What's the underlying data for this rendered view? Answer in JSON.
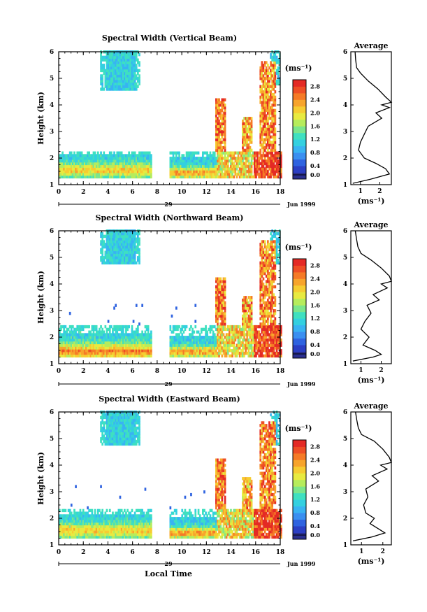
{
  "chart_data": [
    {
      "type": "heatmap",
      "title": "Spectral Width (Vertical Beam)",
      "xlabel": "",
      "ylabel": "Height (km)",
      "xlim": [
        0,
        18
      ],
      "ylim": [
        1,
        6
      ],
      "xticks": [
        "0",
        "2",
        "4",
        "6",
        "8",
        "10",
        "12",
        "14",
        "16",
        "18"
      ],
      "yticks": [
        "1",
        "2",
        "3",
        "4",
        "5",
        "6"
      ],
      "date_day": "29",
      "date_month": "Jun 1999",
      "colorbar": {
        "unit": "(ms⁻¹)",
        "labels": [
          "0.0",
          "0.4",
          "0.8",
          "1.2",
          "1.6",
          "2.0",
          "2.4",
          "2.8"
        ],
        "range": [
          0,
          3.0
        ]
      },
      "average": {
        "title": "Average",
        "xlabel": "(ms⁻¹)",
        "xticks": [
          "1",
          "2"
        ],
        "xlim": [
          0.5,
          2.6
        ],
        "points": [
          [
            0.72,
            6.0
          ],
          [
            0.75,
            5.7
          ],
          [
            0.8,
            5.4
          ],
          [
            1.0,
            5.2
          ],
          [
            1.4,
            4.9
          ],
          [
            1.9,
            4.6
          ],
          [
            2.3,
            4.3
          ],
          [
            2.6,
            4.1
          ],
          [
            2.1,
            4.0
          ],
          [
            2.5,
            3.9
          ],
          [
            1.8,
            3.7
          ],
          [
            2.1,
            3.5
          ],
          [
            1.4,
            3.2
          ],
          [
            1.2,
            2.9
          ],
          [
            1.0,
            2.6
          ],
          [
            0.9,
            2.3
          ],
          [
            1.2,
            2.0
          ],
          [
            1.8,
            1.8
          ],
          [
            2.3,
            1.6
          ],
          [
            2.5,
            1.4
          ],
          [
            1.5,
            1.2
          ],
          [
            0.6,
            1.05
          ]
        ]
      }
    },
    {
      "type": "heatmap",
      "title": "Spectral Width (Northward Beam)",
      "xlabel": "",
      "ylabel": "Height (km)",
      "xlim": [
        0,
        18
      ],
      "ylim": [
        1,
        6
      ],
      "xticks": [
        "0",
        "2",
        "4",
        "6",
        "8",
        "10",
        "12",
        "14",
        "16",
        "18"
      ],
      "yticks": [
        "1",
        "2",
        "3",
        "4",
        "5",
        "6"
      ],
      "date_day": "29",
      "date_month": "Jun 1999",
      "colorbar": {
        "unit": "(ms⁻¹)",
        "labels": [
          "0.0",
          "0.4",
          "0.8",
          "1.2",
          "1.6",
          "2.0",
          "2.4",
          "2.8"
        ],
        "range": [
          0,
          3.0
        ]
      },
      "average": {
        "title": "Average",
        "xlabel": "(ms⁻¹)",
        "xticks": [
          "1",
          "2"
        ],
        "xlim": [
          0.5,
          2.5
        ],
        "points": [
          [
            0.72,
            6.0
          ],
          [
            0.78,
            5.7
          ],
          [
            0.85,
            5.4
          ],
          [
            1.0,
            5.15
          ],
          [
            1.5,
            4.9
          ],
          [
            2.0,
            4.6
          ],
          [
            2.4,
            4.3
          ],
          [
            2.5,
            4.1
          ],
          [
            2.0,
            4.0
          ],
          [
            2.3,
            3.85
          ],
          [
            1.6,
            3.6
          ],
          [
            1.9,
            3.4
          ],
          [
            1.3,
            3.2
          ],
          [
            1.5,
            2.9
          ],
          [
            1.2,
            2.6
          ],
          [
            1.0,
            2.3
          ],
          [
            1.4,
            2.0
          ],
          [
            1.1,
            1.7
          ],
          [
            1.7,
            1.5
          ],
          [
            2.0,
            1.35
          ],
          [
            1.6,
            1.25
          ],
          [
            0.6,
            1.1
          ]
        ]
      }
    },
    {
      "type": "heatmap",
      "title": "Spectral Width (Eastward Beam)",
      "xlabel": "Local Time",
      "ylabel": "Height (km)",
      "xlim": [
        0,
        18
      ],
      "ylim": [
        1,
        6
      ],
      "xticks": [
        "0",
        "2",
        "4",
        "6",
        "8",
        "10",
        "12",
        "14",
        "16",
        "18"
      ],
      "yticks": [
        "1",
        "2",
        "3",
        "4",
        "5",
        "6"
      ],
      "date_day": "29",
      "date_month": "Jun 1999",
      "colorbar": {
        "unit": "(ms⁻¹)",
        "labels": [
          "0.0",
          "0.4",
          "0.8",
          "1.2",
          "1.6",
          "2.0",
          "2.4",
          "2.8"
        ],
        "range": [
          0,
          3.0
        ]
      },
      "average": {
        "title": "Average",
        "xlabel": "(ms⁻¹)",
        "xticks": [
          "1",
          "2"
        ],
        "xlim": [
          0.5,
          2.4
        ],
        "points": [
          [
            0.72,
            6.0
          ],
          [
            0.78,
            5.7
          ],
          [
            0.85,
            5.4
          ],
          [
            1.0,
            5.15
          ],
          [
            1.6,
            4.9
          ],
          [
            2.0,
            4.6
          ],
          [
            2.3,
            4.3
          ],
          [
            2.4,
            4.1
          ],
          [
            1.9,
            4.0
          ],
          [
            2.2,
            3.85
          ],
          [
            1.5,
            3.6
          ],
          [
            1.8,
            3.4
          ],
          [
            1.2,
            3.1
          ],
          [
            1.3,
            2.8
          ],
          [
            1.1,
            2.5
          ],
          [
            1.2,
            2.2
          ],
          [
            1.6,
            2.0
          ],
          [
            1.4,
            1.8
          ],
          [
            1.8,
            1.6
          ],
          [
            2.1,
            1.45
          ],
          [
            1.5,
            1.3
          ],
          [
            0.6,
            1.15
          ]
        ]
      }
    }
  ]
}
